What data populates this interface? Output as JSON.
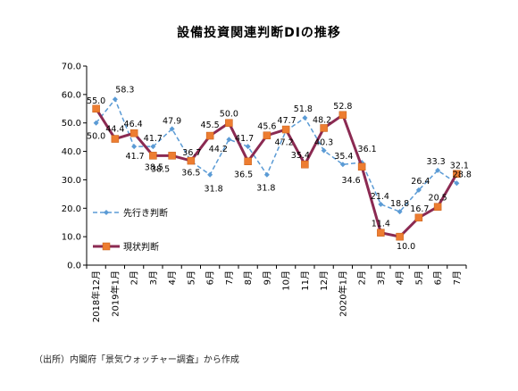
{
  "title": "設備投資関連判断DIの推移",
  "source": "（出所）内閣府「景気ウォッチャー調査」から作成",
  "chart_data": {
    "type": "line",
    "title": "設備投資関連判断DIの推移",
    "ylim": [
      0,
      70
    ],
    "yticks": [
      "0.0",
      "10.0",
      "20.0",
      "30.0",
      "40.0",
      "50.0",
      "60.0",
      "70.0"
    ],
    "grid": false,
    "legend_position": "bottom-left",
    "categories": [
      "2018年12月",
      "2019年1月",
      "2月",
      "3月",
      "4月",
      "5月",
      "6月",
      "7月",
      "8月",
      "9月",
      "10月",
      "11月",
      "12月",
      "2020年1月",
      "2月",
      "3月",
      "4月",
      "5月",
      "6月",
      "7月"
    ],
    "series": [
      {
        "name": "先行き判断",
        "color": "#5b9bd5",
        "style": "dashed",
        "marker": "diamond",
        "values": [
          50.0,
          58.3,
          41.7,
          41.7,
          47.9,
          36.5,
          31.8,
          44.2,
          41.7,
          31.8,
          47.2,
          51.8,
          40.3,
          35.4,
          36.1,
          21.4,
          18.8,
          26.4,
          33.3,
          28.8
        ],
        "labels": [
          "50.0",
          "58.3",
          "41.7",
          "41.7",
          "47.9",
          "36.5",
          "31.8",
          "44.2",
          "41.7",
          "31.8",
          "47.2",
          "51.8",
          "40.3",
          "35.4",
          "36.1",
          "21.4",
          "18.8",
          "26.4",
          "33.3",
          "28.8"
        ]
      },
      {
        "name": "現状判断",
        "color": "#8b2a52",
        "markerColor": "#ed7d31",
        "style": "solid",
        "marker": "square",
        "values": [
          55.0,
          44.4,
          46.4,
          38.5,
          38.5,
          36.7,
          45.5,
          50.0,
          36.5,
          45.6,
          47.7,
          35.4,
          48.2,
          52.8,
          34.6,
          11.4,
          10.0,
          16.7,
          20.5,
          32.1
        ],
        "labels": [
          "55.0",
          "44.4",
          "46.4",
          "38.5",
          "38.5",
          "36.7",
          "45.5",
          "50.0",
          "36.5",
          "45.6",
          "47.7",
          "35.4",
          "48.2",
          "52.8",
          "34.6",
          "11.4",
          "10.0",
          "16.7",
          "20.5",
          "32.1"
        ]
      }
    ]
  }
}
